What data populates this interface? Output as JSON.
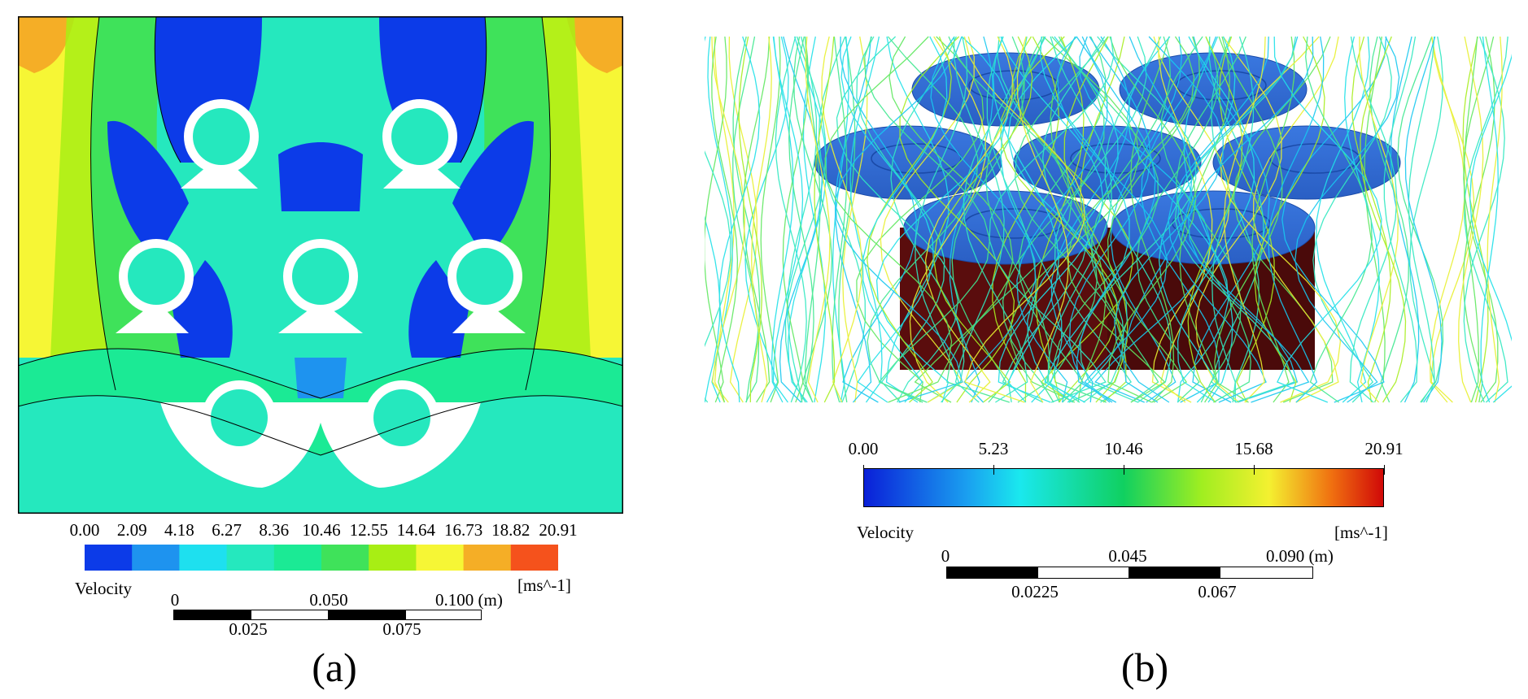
{
  "panel_a": {
    "legend": {
      "ticks": [
        "0.00",
        "2.09",
        "4.18",
        "6.27",
        "8.36",
        "10.46",
        "12.55",
        "14.64",
        "16.73",
        "18.82",
        "20.91"
      ],
      "colors": [
        "#0c3be8",
        "#1e93ef",
        "#1ee0ef",
        "#25e8be",
        "#1bea95",
        "#3fe25a",
        "#a8ee14",
        "#f6f635",
        "#f5ae26",
        "#f5521c"
      ],
      "variable_label": "Velocity",
      "unit_label": "[ms^-1]"
    },
    "scale_bar": {
      "top_labels": [
        "0",
        "0.050",
        "0.100 (m)"
      ],
      "bottom_labels": [
        "0.025",
        "0.075"
      ]
    },
    "caption": "(a)"
  },
  "panel_b": {
    "legend": {
      "ticks": [
        "0.00",
        "5.23",
        "10.46",
        "15.68",
        "20.91"
      ],
      "variable_label": "Velocity",
      "unit_label": "[ms^-1]"
    },
    "scale_bar": {
      "top_labels": [
        "0",
        "0.045",
        "0.090 (m)"
      ],
      "bottom_labels": [
        "0.0225",
        "0.067"
      ]
    },
    "caption": "(b)"
  }
}
